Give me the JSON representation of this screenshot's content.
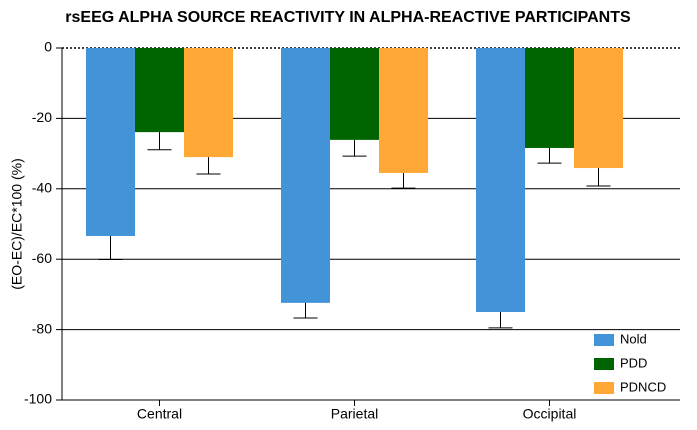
{
  "chart_data": {
    "type": "bar",
    "title": "rsEEG ALPHA SOURCE REACTIVITY IN ALPHA-REACTIVE PARTICIPANTS",
    "y_label": "(EO-EC)/EC*100 (%)",
    "categories": [
      "Central",
      "Parietal",
      "Occipital"
    ],
    "series": [
      {
        "name": "Nold",
        "color": "#4393d9",
        "values": [
          -53.4,
          -72.4,
          -75.0
        ],
        "errors": [
          6.7,
          4.3,
          4.5
        ]
      },
      {
        "name": "PDD",
        "color": "#006400",
        "values": [
          -23.9,
          -26.1,
          -28.4
        ],
        "errors": [
          5.0,
          4.6,
          4.3
        ]
      },
      {
        "name": "PDNCD",
        "color": "#ffa836",
        "values": [
          -31.0,
          -35.5,
          -34.1
        ],
        "errors": [
          4.8,
          4.3,
          5.1
        ]
      }
    ],
    "ylim": [
      -100,
      0
    ],
    "yticks": [
      -100,
      -80,
      -60,
      -40,
      -20,
      0
    ],
    "grid": true,
    "legend": "lower right"
  }
}
